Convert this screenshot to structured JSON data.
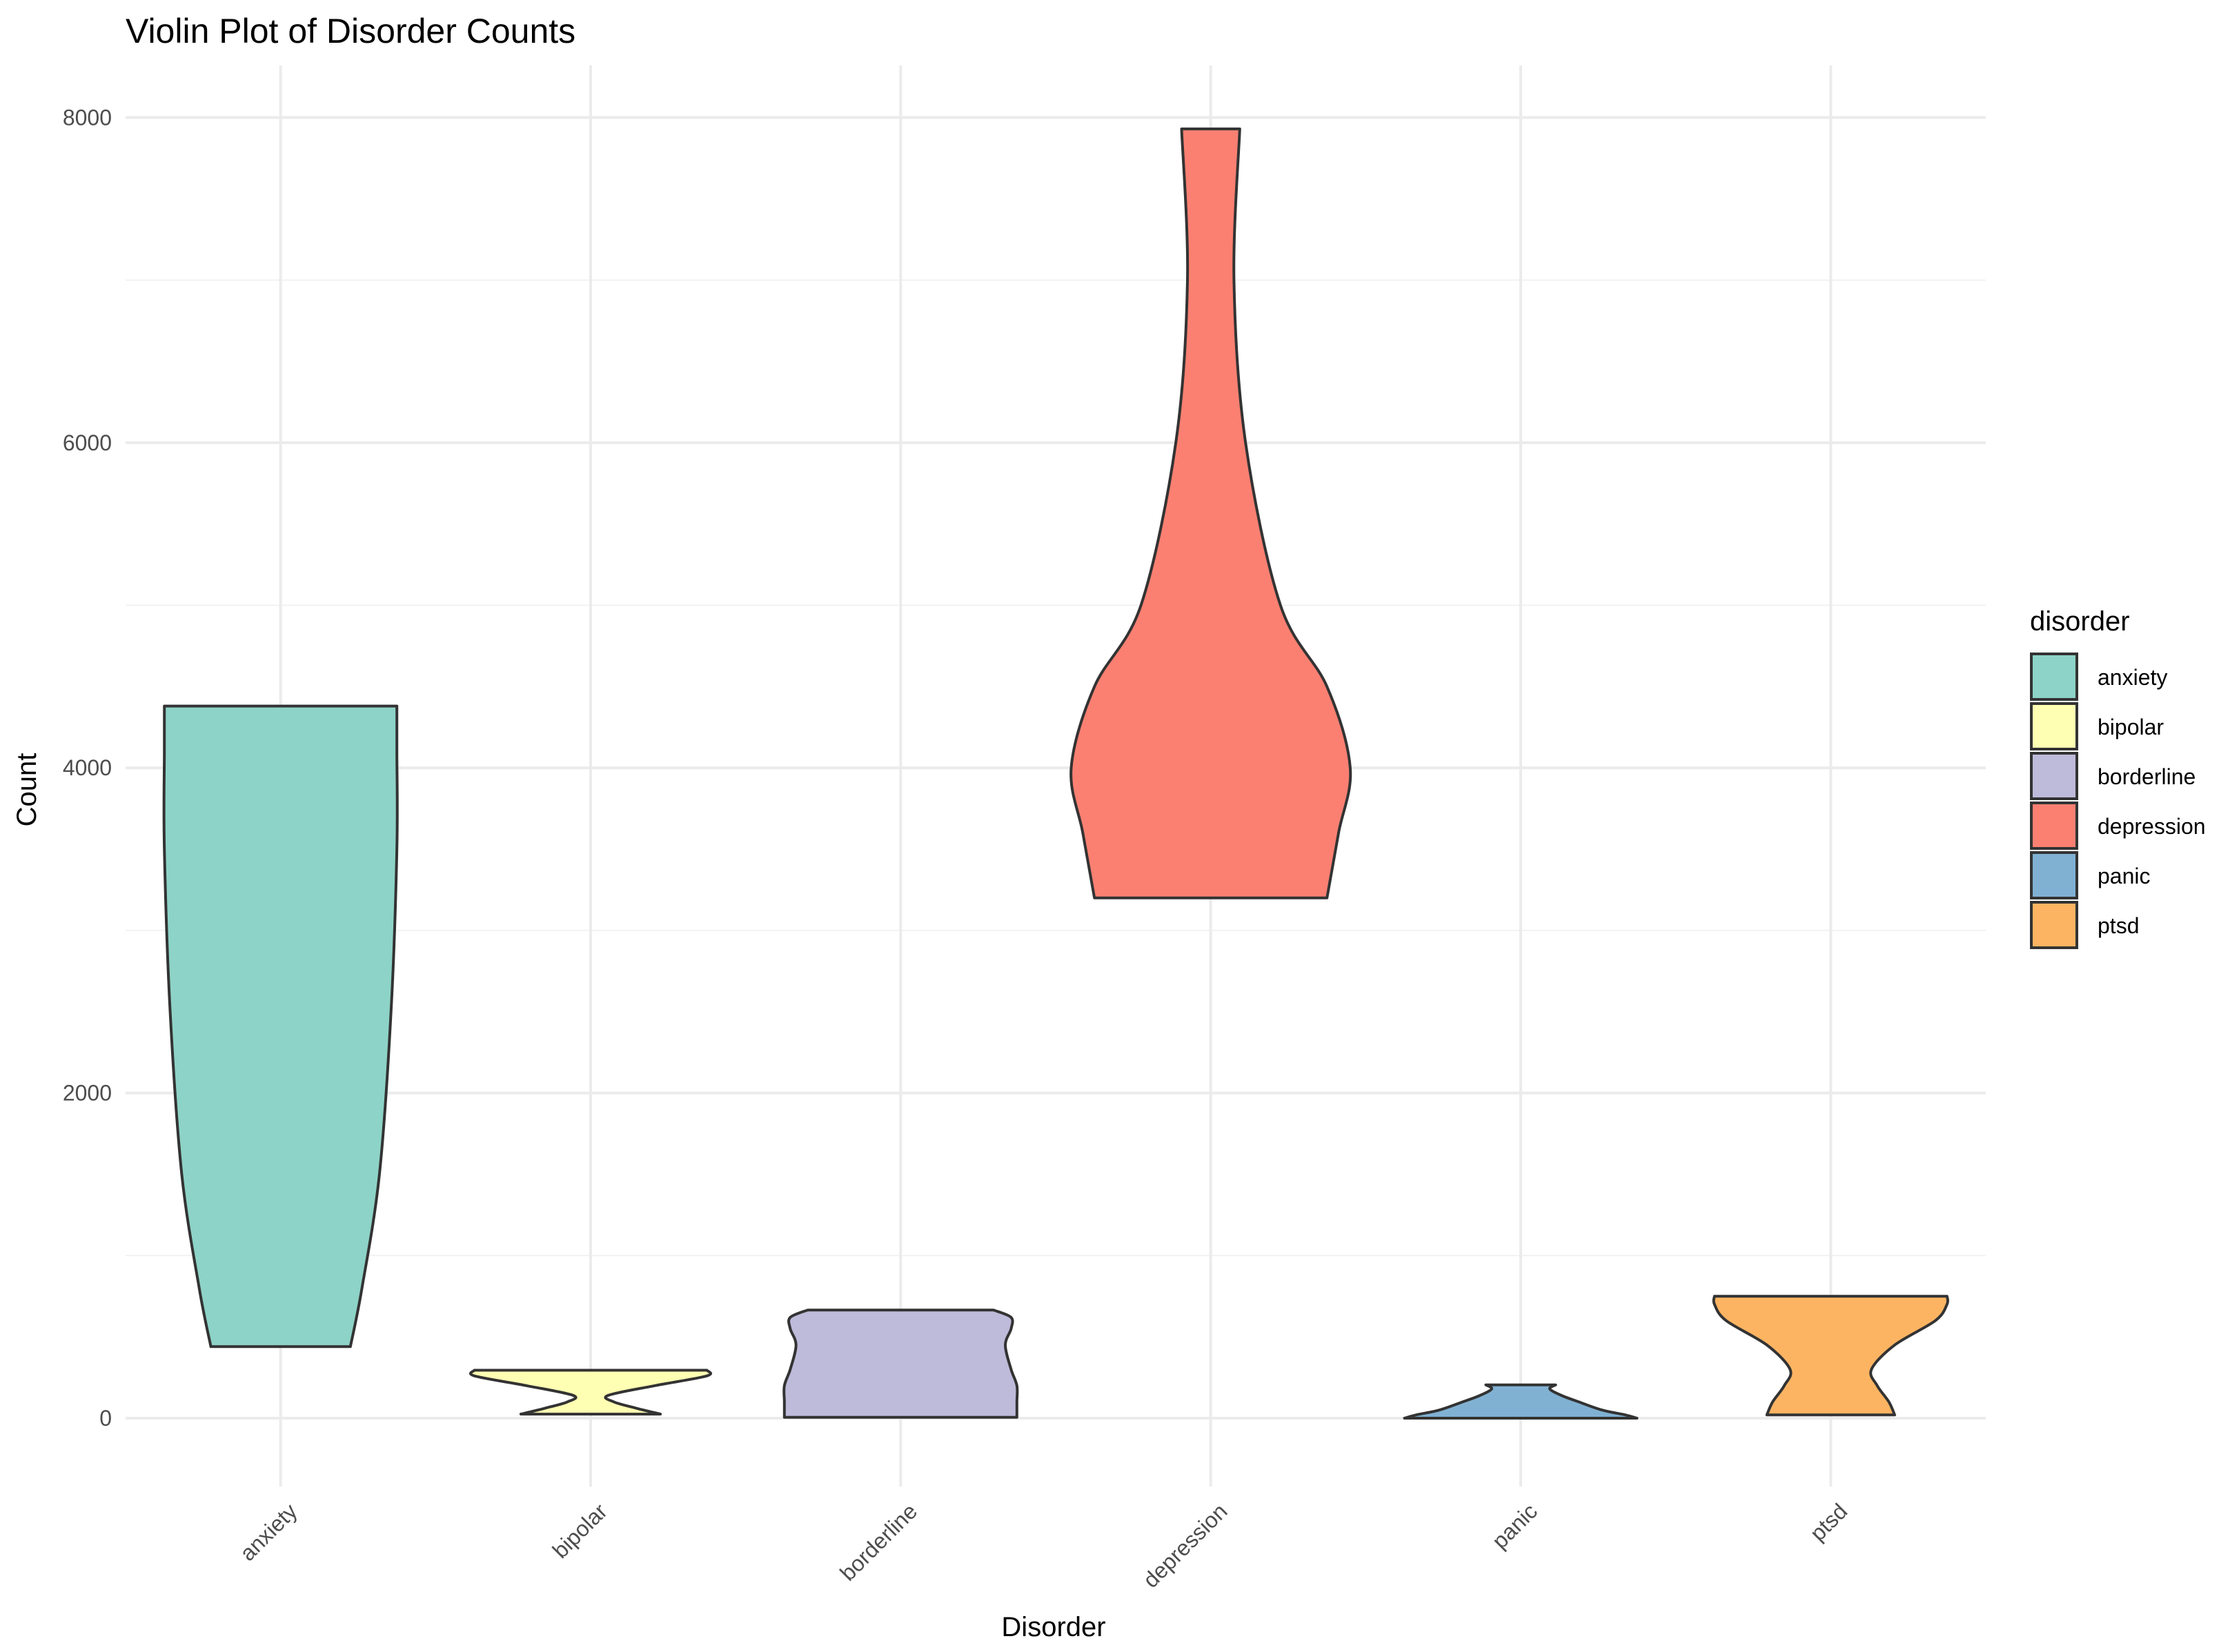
{
  "chart_data": {
    "type": "violin",
    "title": "Violin Plot of Disorder Counts",
    "xlabel": "Disorder",
    "ylabel": "Count",
    "categories": [
      "anxiety",
      "bipolar",
      "borderline",
      "depression",
      "panic",
      "ptsd"
    ],
    "ylim": [
      -420,
      8320
    ],
    "y_ticks": [
      0,
      2000,
      4000,
      6000,
      8000
    ],
    "y_tick_labels": [
      "0",
      "2000",
      "4000",
      "6000",
      "8000"
    ],
    "grid": true,
    "legend": {
      "title": "disorder",
      "position": "right"
    },
    "series": [
      {
        "name": "anxiety",
        "color": "#8DD3C7",
        "profile": [
          [
            440,
            60
          ],
          [
            800,
            70
          ],
          [
            1500,
            85
          ],
          [
            2500,
            95
          ],
          [
            3500,
            100
          ],
          [
            4100,
            100
          ],
          [
            4380,
            100
          ]
        ]
      },
      {
        "name": "bipolar",
        "color": "#FFFFB3",
        "profile": [
          [
            25,
            60
          ],
          [
            60,
            40
          ],
          [
            100,
            20
          ],
          [
            140,
            15
          ],
          [
            200,
            55
          ],
          [
            260,
            100
          ],
          [
            295,
            100
          ]
        ]
      },
      {
        "name": "borderline",
        "color": "#BEBADA",
        "profile": [
          [
            5,
            100
          ],
          [
            100,
            100
          ],
          [
            200,
            100
          ],
          [
            300,
            95
          ],
          [
            450,
            90
          ],
          [
            550,
            95
          ],
          [
            620,
            95
          ],
          [
            665,
            80
          ]
        ]
      },
      {
        "name": "depression",
        "color": "#FB8072",
        "profile": [
          [
            3200,
            100
          ],
          [
            3600,
            110
          ],
          [
            4000,
            120
          ],
          [
            4500,
            100
          ],
          [
            5000,
            60
          ],
          [
            6000,
            30
          ],
          [
            7000,
            20
          ],
          [
            7930,
            25
          ]
        ]
      },
      {
        "name": "panic",
        "color": "#80B1D3",
        "profile": [
          [
            0,
            100
          ],
          [
            20,
            90
          ],
          [
            50,
            70
          ],
          [
            100,
            50
          ],
          [
            140,
            35
          ],
          [
            180,
            25
          ],
          [
            205,
            30
          ]
        ]
      },
      {
        "name": "ptsd",
        "color": "#FDB462",
        "profile": [
          [
            20,
            55
          ],
          [
            100,
            50
          ],
          [
            200,
            40
          ],
          [
            300,
            35
          ],
          [
            450,
            55
          ],
          [
            600,
            90
          ],
          [
            700,
            100
          ],
          [
            750,
            100
          ]
        ]
      }
    ]
  }
}
